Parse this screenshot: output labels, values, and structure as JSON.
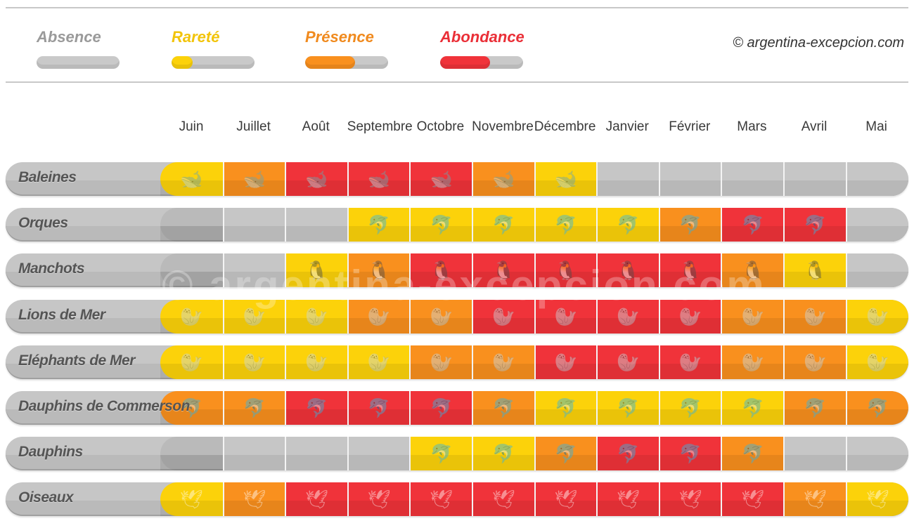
{
  "colors": {
    "absence": "#c6c6c6",
    "rarete": "#fcd20a",
    "presence": "#f9901e",
    "abondance": "#f0333a"
  },
  "legend": [
    {
      "key": "absence",
      "label": "Absence",
      "color": "#9a9a9a",
      "level": 0
    },
    {
      "key": "rarete",
      "label": "Rareté",
      "color": "#f2c40a",
      "level": 0.25
    },
    {
      "key": "presence",
      "label": "Présence",
      "color": "#f08a1e",
      "level": 0.6
    },
    {
      "key": "abondance",
      "label": "Abondance",
      "color": "#ea2f37",
      "level": 0.6
    }
  ],
  "copyright": "© argentina-excepcion.com",
  "watermark": "© argentina-excepcion.com",
  "chart_data": {
    "type": "heatmap",
    "title": "",
    "scale": [
      "absence",
      "rarete",
      "presence",
      "abondance"
    ],
    "months": [
      "Juin",
      "Juillet",
      "Août",
      "Septembre",
      "Octobre",
      "Novembre",
      "Décembre",
      "Janvier",
      "Février",
      "Mars",
      "Avril",
      "Mai"
    ],
    "rows": [
      {
        "animal": "Baleines",
        "icon": "whale-icon",
        "glyph": "🐋",
        "values": [
          "rarete",
          "presence",
          "abondance",
          "abondance",
          "abondance",
          "presence",
          "rarete",
          "absence",
          "absence",
          "absence",
          "absence",
          "absence"
        ]
      },
      {
        "animal": "Orques",
        "icon": "orca-icon",
        "glyph": "🐬",
        "values": [
          "absence",
          "absence",
          "absence",
          "rarete",
          "rarete",
          "rarete",
          "rarete",
          "rarete",
          "presence",
          "abondance",
          "abondance",
          "absence"
        ]
      },
      {
        "animal": "Manchots",
        "icon": "penguin-icon",
        "glyph": "🐧",
        "values": [
          "absence",
          "absence",
          "rarete",
          "presence",
          "abondance",
          "abondance",
          "abondance",
          "abondance",
          "abondance",
          "presence",
          "rarete",
          "absence"
        ]
      },
      {
        "animal": "Lions de Mer",
        "icon": "sea-lion-icon",
        "glyph": "🦭",
        "values": [
          "rarete",
          "rarete",
          "rarete",
          "presence",
          "presence",
          "abondance",
          "abondance",
          "abondance",
          "abondance",
          "presence",
          "presence",
          "rarete"
        ]
      },
      {
        "animal": "Eléphants de Mer",
        "icon": "elephant-seal-icon",
        "glyph": "🦭",
        "values": [
          "rarete",
          "rarete",
          "rarete",
          "rarete",
          "presence",
          "presence",
          "abondance",
          "abondance",
          "abondance",
          "presence",
          "presence",
          "rarete"
        ]
      },
      {
        "animal": "Dauphins de Commerson",
        "icon": "commerson-dolphin-icon",
        "glyph": "🐬",
        "values": [
          "presence",
          "presence",
          "abondance",
          "abondance",
          "abondance",
          "presence",
          "rarete",
          "rarete",
          "rarete",
          "rarete",
          "presence",
          "presence"
        ]
      },
      {
        "animal": "Dauphins",
        "icon": "dolphin-icon",
        "glyph": "🐬",
        "values": [
          "absence",
          "absence",
          "absence",
          "absence",
          "rarete",
          "rarete",
          "presence",
          "abondance",
          "abondance",
          "presence",
          "absence",
          "absence"
        ]
      },
      {
        "animal": "Oiseaux",
        "icon": "bird-icon",
        "glyph": "🕊",
        "values": [
          "rarete",
          "presence",
          "abondance",
          "abondance",
          "abondance",
          "abondance",
          "abondance",
          "abondance",
          "abondance",
          "abondance",
          "presence",
          "rarete"
        ]
      }
    ]
  }
}
